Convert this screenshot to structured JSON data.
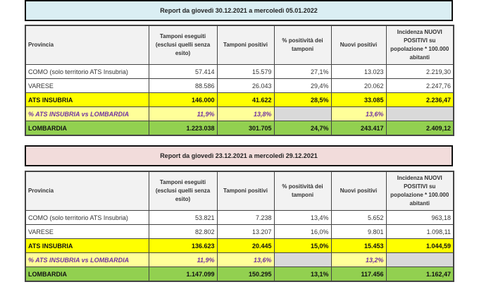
{
  "headers": [
    "Provincia",
    "Tamponi eseguiti (esclusi quelli senza esito)",
    "Tamponi positivi",
    "% positività dei tamponi",
    "Nuovi positivi",
    "Incidenza NUOVI POSITIVI su popolazione * 100.000 abitanti"
  ],
  "reports": [
    {
      "title": "Report da giovedì 30.12.2021 a mercoledì 05.01.2022",
      "rows": [
        [
          "COMO (solo territorio ATS Insubria)",
          "57.414",
          "15.579",
          "27,1%",
          "13.023",
          "2.219,30"
        ],
        [
          "VARESE",
          "88.586",
          "26.043",
          "29,4%",
          "20.062",
          "2.247,76"
        ],
        [
          "ATS INSUBRIA",
          "146.000",
          "41.622",
          "28,5%",
          "33.085",
          "2.236,47"
        ],
        [
          "% ATS INSUBRIA vs LOMBARDIA",
          "11,9%",
          "13,8%",
          "",
          "13,6%",
          ""
        ],
        [
          "LOMBARDIA",
          "1.223.038",
          "301.705",
          "24,7%",
          "243.417",
          "2.409,12"
        ]
      ]
    },
    {
      "title": "Report da giovedì 23.12.2021 a mercoledì 29.12.2021",
      "rows": [
        [
          "COMO (solo territorio ATS Insubria)",
          "53.821",
          "7.238",
          "13,4%",
          "5.652",
          "963,18"
        ],
        [
          "VARESE",
          "82.802",
          "13.207",
          "16,0%",
          "9.801",
          "1.098,11"
        ],
        [
          "ATS INSUBRIA",
          "136.623",
          "20.445",
          "15,0%",
          "15.453",
          "1.044,59"
        ],
        [
          "% ATS INSUBRIA vs LOMBARDIA",
          "11,9%",
          "13,6%",
          "",
          "13,2%",
          ""
        ],
        [
          "LOMBARDIA",
          "1.147.099",
          "150.295",
          "13,1%",
          "117.456",
          "1.162,47"
        ]
      ]
    }
  ]
}
